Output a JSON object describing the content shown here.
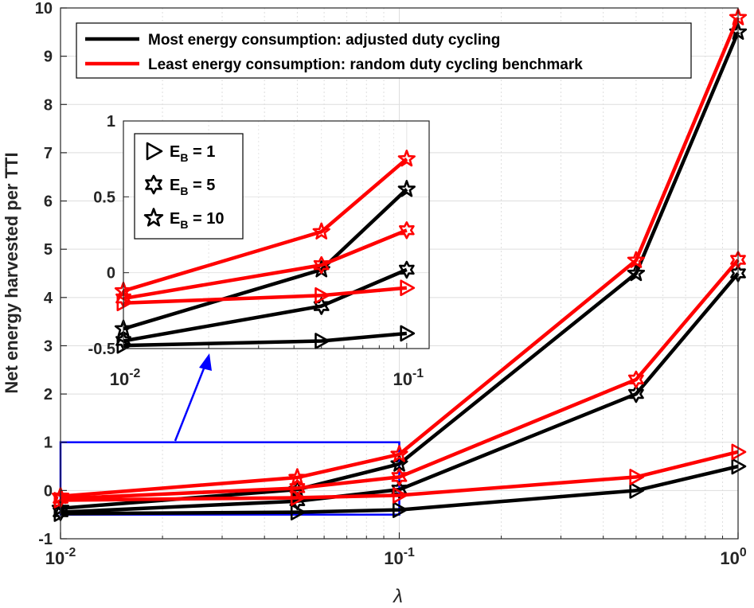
{
  "chart_data": {
    "type": "line",
    "xscale": "log",
    "xlabel": "λ",
    "ylabel": "Net energy harvested per TTI",
    "xlim": [
      0.01,
      1
    ],
    "ylim": [
      -1,
      10
    ],
    "x": [
      0.01,
      0.05,
      0.1,
      0.5,
      1
    ],
    "x_ticks": [
      {
        "base": "10",
        "exp": "-2"
      },
      {
        "base": "10",
        "exp": "-1"
      },
      {
        "base": "10",
        "exp": "0"
      }
    ],
    "y_ticks": [
      "-1",
      "0",
      "1",
      "2",
      "3",
      "4",
      "5",
      "6",
      "7",
      "8",
      "9",
      "10"
    ],
    "legend": {
      "position": "top",
      "entries": [
        {
          "label": "Most energy consumption: adjusted duty cycling",
          "color": "#000000"
        },
        {
          "label": "Least energy consumption: random duty cycling benchmark",
          "color": "#ff0000"
        }
      ]
    },
    "marker_legend": {
      "entries": [
        {
          "marker": "triangle-right",
          "text": "E",
          "sub": "B",
          "rest": " = 1"
        },
        {
          "marker": "hexagram",
          "text": "E",
          "sub": "B",
          "rest": " = 5"
        },
        {
          "marker": "star",
          "text": "E",
          "sub": "B",
          "rest": " = 10"
        }
      ]
    },
    "series": [
      {
        "name": "Most energy consumption, E_B = 1",
        "color": "#000000",
        "marker": "triangle-right",
        "values": [
          -0.48,
          -0.45,
          -0.4,
          0.0,
          0.5
        ]
      },
      {
        "name": "Most energy consumption, E_B = 5",
        "color": "#000000",
        "marker": "hexagram",
        "values": [
          -0.45,
          -0.22,
          0.02,
          2.0,
          4.5
        ]
      },
      {
        "name": "Most energy consumption, E_B = 10",
        "color": "#000000",
        "marker": "star",
        "values": [
          -0.37,
          0.02,
          0.55,
          4.5,
          9.5
        ]
      },
      {
        "name": "Least energy consumption, E_B = 1",
        "color": "#ff0000",
        "marker": "triangle-right",
        "values": [
          -0.2,
          -0.15,
          -0.1,
          0.28,
          0.8
        ]
      },
      {
        "name": "Least energy consumption, E_B = 5",
        "color": "#ff0000",
        "marker": "hexagram",
        "values": [
          -0.17,
          0.05,
          0.28,
          2.3,
          4.78
        ]
      },
      {
        "name": "Least energy consumption, E_B = 10",
        "color": "#ff0000",
        "marker": "star",
        "values": [
          -0.12,
          0.27,
          0.75,
          4.77,
          9.8
        ]
      }
    ],
    "inset": {
      "xlim": [
        0.01,
        0.1
      ],
      "ylim": [
        -0.5,
        1
      ],
      "x_ticks": [
        {
          "base": "10",
          "exp": "-2"
        },
        {
          "base": "10",
          "exp": "-1"
        }
      ],
      "y_ticks": [
        "-0.5",
        "0",
        "0.5",
        "1"
      ],
      "zoom_box": {
        "xlim": [
          0.01,
          0.1
        ],
        "ylim": [
          -0.5,
          1
        ]
      }
    }
  }
}
